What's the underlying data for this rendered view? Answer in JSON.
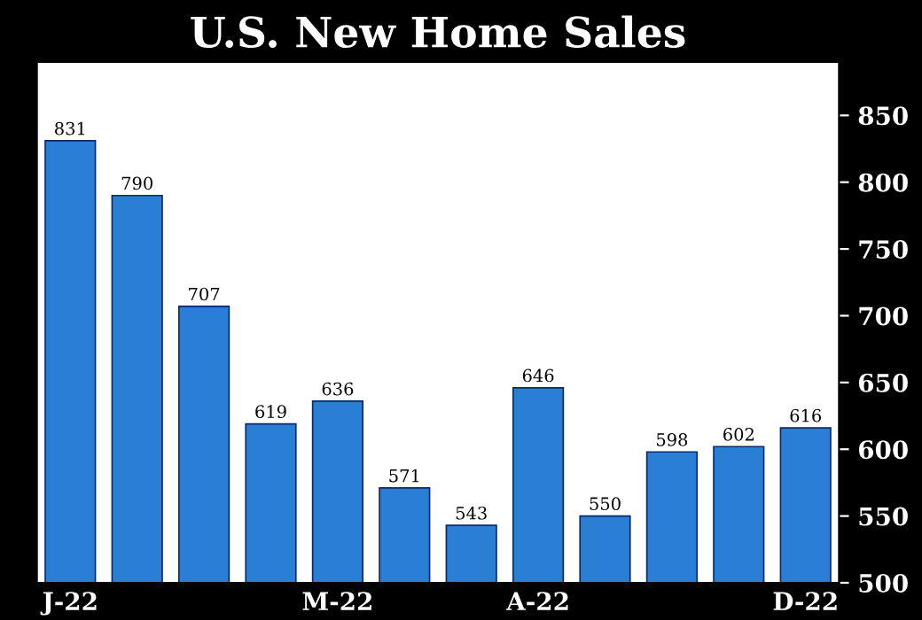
{
  "chart_data": {
    "type": "bar",
    "title": "U.S. New Home Sales",
    "categories": [
      "J-22",
      null,
      null,
      null,
      "M-22",
      null,
      null,
      "A-22",
      null,
      null,
      null,
      "D-22"
    ],
    "values": [
      831,
      790,
      707,
      619,
      636,
      571,
      543,
      646,
      550,
      598,
      602,
      616
    ],
    "color": "#2a7fd4",
    "ylim": [
      500,
      890
    ],
    "yticks": [
      500,
      550,
      600,
      650,
      700,
      750,
      800,
      850
    ],
    "grid": false,
    "data_labels": true
  }
}
